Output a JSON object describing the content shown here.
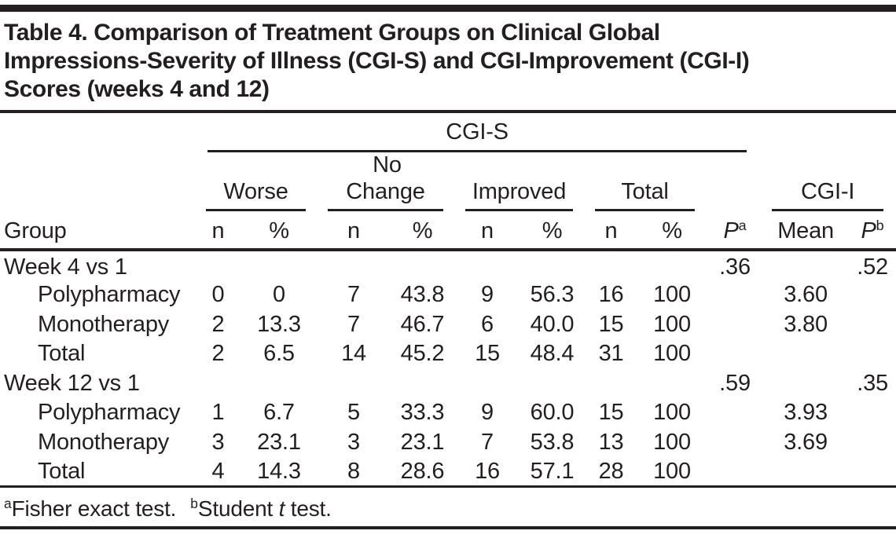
{
  "page": {
    "title_lines": [
      "Table 4. Comparison of Treatment Groups on Clinical Global",
      "Impressions-Severity of Illness (CGI-S) and CGI-Improvement (CGI-I)",
      "Scores (weeks 4 and 12)"
    ],
    "footnotes": {
      "a_marker": "a",
      "a_text": "Fisher exact test.",
      "b_marker": "b",
      "b_text_pre": "Student ",
      "b_text_italic": "t",
      "b_text_post": " test."
    }
  },
  "colors": {
    "ink": "#231f20",
    "background": "#ffffff"
  },
  "table": {
    "header": {
      "group": "Group",
      "cgis": "CGI-S",
      "cgii": "CGI-I",
      "categories": {
        "worse": "Worse",
        "no_change_line1": "No",
        "no_change_line2": "Change",
        "improved": "Improved",
        "total": "Total"
      },
      "n": "n",
      "pct": "%",
      "p": "P",
      "p_a_sup": "a",
      "p_b_sup": "b",
      "mean": "Mean"
    },
    "rows": [
      {
        "label": "Week 4 vs 1",
        "indent": false,
        "cells": [
          "",
          "",
          "",
          "",
          "",
          "",
          "",
          "",
          ".36",
          "",
          ".52"
        ]
      },
      {
        "label": "Polypharmacy",
        "indent": true,
        "cells": [
          "0",
          "0",
          "7",
          "43.8",
          "9",
          "56.3",
          "16",
          "100",
          "",
          "3.60",
          ""
        ]
      },
      {
        "label": "Monotherapy",
        "indent": true,
        "cells": [
          "2",
          "13.3",
          "7",
          "46.7",
          "6",
          "40.0",
          "15",
          "100",
          "",
          "3.80",
          ""
        ]
      },
      {
        "label": "Total",
        "indent": true,
        "cells": [
          "2",
          "6.5",
          "14",
          "45.2",
          "15",
          "48.4",
          "31",
          "100",
          "",
          "",
          ""
        ]
      },
      {
        "label": "Week 12 vs 1",
        "indent": false,
        "cells": [
          "",
          "",
          "",
          "",
          "",
          "",
          "",
          "",
          ".59",
          "",
          ".35"
        ]
      },
      {
        "label": "Polypharmacy",
        "indent": true,
        "cells": [
          "1",
          "6.7",
          "5",
          "33.3",
          "9",
          "60.0",
          "15",
          "100",
          "",
          "3.93",
          ""
        ]
      },
      {
        "label": "Monotherapy",
        "indent": true,
        "cells": [
          "3",
          "23.1",
          "3",
          "23.1",
          "7",
          "53.8",
          "13",
          "100",
          "",
          "3.69",
          ""
        ]
      },
      {
        "label": "Total",
        "indent": true,
        "cells": [
          "4",
          "14.3",
          "8",
          "28.6",
          "16",
          "57.1",
          "28",
          "100",
          "",
          "",
          ""
        ]
      }
    ]
  }
}
